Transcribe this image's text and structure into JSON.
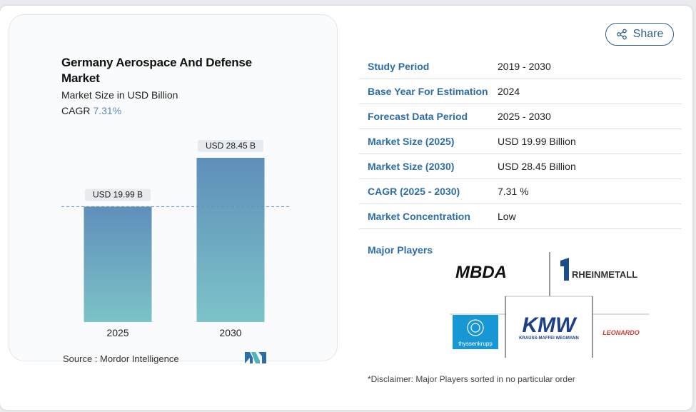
{
  "chart": {
    "title": "Germany Aerospace And Defense Market",
    "subtitle": "Market Size in USD Billion",
    "cagr_label": "CAGR",
    "cagr_value": "7.31%",
    "source": "Source :  Mordor Intelligence"
  },
  "chart_data": {
    "type": "bar",
    "categories": [
      "2025",
      "2030"
    ],
    "values": [
      19.99,
      28.45
    ],
    "labels": [
      "USD 19.99 B",
      "USD 28.45 B"
    ],
    "title": "Germany Aerospace And Defense Market",
    "ylabel": "Market Size in USD Billion",
    "ylim": [
      0,
      30
    ],
    "colors": {
      "bar_top": "#5f8fba",
      "bar_bottom": "#7cc3c8",
      "dashed": "#5f8fba"
    }
  },
  "share": {
    "label": "Share"
  },
  "table": {
    "rows": [
      {
        "key": "Study Period",
        "value": "2019 - 2030"
      },
      {
        "key": "Base Year For Estimation",
        "value": "2024"
      },
      {
        "key": "Forecast Data Period",
        "value": "2025 - 2030"
      },
      {
        "key": "Market Size (2025)",
        "value": "USD 19.99 Billion"
      },
      {
        "key": "Market Size (2030)",
        "value": "USD 28.45 Billion"
      },
      {
        "key": "CAGR (2025 - 2030)",
        "value": "7.31 %"
      },
      {
        "key": "Market Concentration",
        "value": "Low"
      }
    ]
  },
  "major_players": {
    "label": "Major Players",
    "logos": [
      "MBDA",
      "RHEINMETALL",
      "thyssenkrupp",
      "KMW",
      "KRAUSS-MAFFEI WEGMANN",
      "LEONARDO"
    ]
  },
  "disclaimer": "*Disclaimer: Major Players sorted in no particular order"
}
